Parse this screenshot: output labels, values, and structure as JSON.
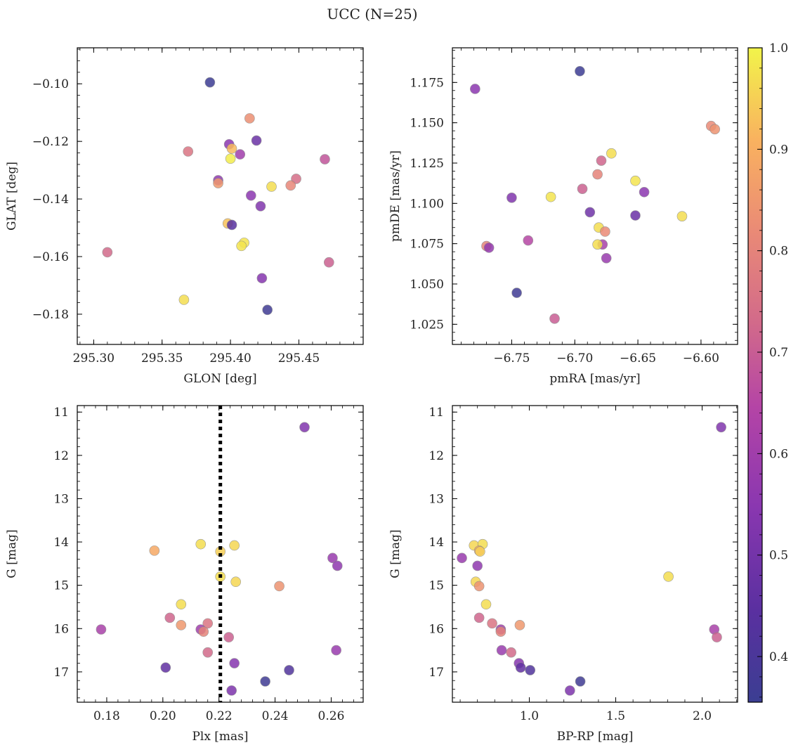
{
  "figure_title": "UCC (N=25)",
  "colorbar": {
    "range": [
      0.355,
      1.0
    ],
    "ticks": [
      "0.4",
      "0.5",
      "0.6",
      "0.7",
      "0.8",
      "0.9",
      "1.0"
    ],
    "tick_values": [
      0.4,
      0.5,
      0.6,
      0.7,
      0.8,
      0.9,
      1.0
    ],
    "colormap": "plasma"
  },
  "chart_data": [
    {
      "type": "scatter",
      "xlabel": "GLON [deg]",
      "ylabel": "GLAT [deg]",
      "xlim": [
        295.288,
        295.497
      ],
      "ylim": [
        -0.1905,
        -0.0875
      ],
      "xticks": [
        "295.30",
        "295.35",
        "295.40",
        "295.45"
      ],
      "xtick_values": [
        295.3,
        295.35,
        295.4,
        295.45
      ],
      "yticks": [
        "−0.10",
        "−0.12",
        "−0.14",
        "−0.16",
        "−0.18"
      ],
      "ytick_values": [
        -0.1,
        -0.12,
        -0.14,
        -0.16,
        -0.18
      ],
      "y_inverted": false,
      "points": [
        {
          "x": 295.385,
          "y": -0.0995,
          "c": 0.36
        },
        {
          "x": 295.414,
          "y": -0.112,
          "c": 0.83
        },
        {
          "x": 295.369,
          "y": -0.1235,
          "c": 0.76
        },
        {
          "x": 295.399,
          "y": -0.121,
          "c": 0.55
        },
        {
          "x": 295.401,
          "y": -0.1225,
          "c": 0.92
        },
        {
          "x": 295.419,
          "y": -0.1197,
          "c": 0.48
        },
        {
          "x": 295.407,
          "y": -0.1245,
          "c": 0.6
        },
        {
          "x": 295.4,
          "y": -0.126,
          "c": 0.99
        },
        {
          "x": 295.469,
          "y": -0.1262,
          "c": 0.68
        },
        {
          "x": 295.391,
          "y": -0.1335,
          "c": 0.56
        },
        {
          "x": 295.391,
          "y": -0.1345,
          "c": 0.85
        },
        {
          "x": 295.448,
          "y": -0.133,
          "c": 0.74
        },
        {
          "x": 295.43,
          "y": -0.1357,
          "c": 0.97
        },
        {
          "x": 295.444,
          "y": -0.1353,
          "c": 0.81
        },
        {
          "x": 295.415,
          "y": -0.1388,
          "c": 0.55
        },
        {
          "x": 295.422,
          "y": -0.1425,
          "c": 0.53
        },
        {
          "x": 295.398,
          "y": -0.1485,
          "c": 0.93
        },
        {
          "x": 295.401,
          "y": -0.149,
          "c": 0.44
        },
        {
          "x": 295.41,
          "y": -0.1552,
          "c": 0.98
        },
        {
          "x": 295.408,
          "y": -0.1563,
          "c": 0.98
        },
        {
          "x": 295.31,
          "y": -0.1585,
          "c": 0.73
        },
        {
          "x": 295.472,
          "y": -0.162,
          "c": 0.71
        },
        {
          "x": 295.423,
          "y": -0.1675,
          "c": 0.54
        },
        {
          "x": 295.366,
          "y": -0.175,
          "c": 0.97
        },
        {
          "x": 295.427,
          "y": -0.1785,
          "c": 0.37
        }
      ]
    },
    {
      "type": "scatter",
      "xlabel": "pmRA [mas/yr]",
      "ylabel": "pmDE [mas/yr]",
      "xlim": [
        -6.797,
        -6.571
      ],
      "ylim": [
        1.0125,
        1.1965
      ],
      "xticks": [
        "−6.75",
        "−6.70",
        "−6.65",
        "−6.60"
      ],
      "xtick_values": [
        -6.75,
        -6.7,
        -6.65,
        -6.6
      ],
      "yticks": [
        "1.025",
        "1.050",
        "1.075",
        "1.100",
        "1.125",
        "1.150",
        "1.175"
      ],
      "ytick_values": [
        1.025,
        1.05,
        1.075,
        1.1,
        1.125,
        1.15,
        1.175
      ],
      "y_inverted": false,
      "points": [
        {
          "x": -6.696,
          "y": 1.182,
          "c": 0.36
        },
        {
          "x": -6.779,
          "y": 1.171,
          "c": 0.55
        },
        {
          "x": -6.592,
          "y": 1.148,
          "c": 0.82
        },
        {
          "x": -6.589,
          "y": 1.146,
          "c": 0.84
        },
        {
          "x": -6.671,
          "y": 1.131,
          "c": 0.97
        },
        {
          "x": -6.679,
          "y": 1.1265,
          "c": 0.72
        },
        {
          "x": -6.682,
          "y": 1.118,
          "c": 0.8
        },
        {
          "x": -6.652,
          "y": 1.114,
          "c": 0.98
        },
        {
          "x": -6.694,
          "y": 1.109,
          "c": 0.71
        },
        {
          "x": -6.645,
          "y": 1.107,
          "c": 0.55
        },
        {
          "x": -6.75,
          "y": 1.1035,
          "c": 0.53
        },
        {
          "x": -6.719,
          "y": 1.104,
          "c": 0.98
        },
        {
          "x": -6.688,
          "y": 1.0945,
          "c": 0.49
        },
        {
          "x": -6.652,
          "y": 1.0925,
          "c": 0.48
        },
        {
          "x": -6.615,
          "y": 1.092,
          "c": 0.97
        },
        {
          "x": -6.681,
          "y": 1.085,
          "c": 0.97
        },
        {
          "x": -6.676,
          "y": 1.0825,
          "c": 0.82
        },
        {
          "x": -6.737,
          "y": 1.077,
          "c": 0.65
        },
        {
          "x": -6.678,
          "y": 1.0745,
          "c": 0.62
        },
        {
          "x": -6.682,
          "y": 1.0745,
          "c": 0.97
        },
        {
          "x": -6.77,
          "y": 1.0735,
          "c": 0.8
        },
        {
          "x": -6.768,
          "y": 1.0725,
          "c": 0.57
        },
        {
          "x": -6.675,
          "y": 1.066,
          "c": 0.58
        },
        {
          "x": -6.746,
          "y": 1.0445,
          "c": 0.37
        },
        {
          "x": -6.716,
          "y": 1.0285,
          "c": 0.7
        }
      ]
    },
    {
      "type": "scatter",
      "xlabel": "Plx [mas]",
      "ylabel": "G [mag]",
      "xlim": [
        0.1695,
        0.2714
      ],
      "ylim": [
        10.85,
        17.7
      ],
      "xticks": [
        "0.18",
        "0.20",
        "0.22",
        "0.24",
        "0.26"
      ],
      "xtick_values": [
        0.18,
        0.2,
        0.22,
        0.24,
        0.26
      ],
      "yticks": [
        "11",
        "12",
        "13",
        "14",
        "15",
        "16",
        "17"
      ],
      "ytick_values": [
        11,
        12,
        13,
        14,
        15,
        16,
        17
      ],
      "y_inverted": true,
      "vline": 0.2205,
      "points": [
        {
          "x": 0.2505,
          "y": 11.35,
          "c": 0.53
        },
        {
          "x": 0.2135,
          "y": 14.05,
          "c": 0.97
        },
        {
          "x": 0.2255,
          "y": 14.08,
          "c": 0.96
        },
        {
          "x": 0.197,
          "y": 14.2,
          "c": 0.89
        },
        {
          "x": 0.2205,
          "y": 14.22,
          "c": 0.95
        },
        {
          "x": 0.2605,
          "y": 14.37,
          "c": 0.58
        },
        {
          "x": 0.2622,
          "y": 14.55,
          "c": 0.56
        },
        {
          "x": 0.2205,
          "y": 14.8,
          "c": 0.97
        },
        {
          "x": 0.226,
          "y": 14.92,
          "c": 0.96
        },
        {
          "x": 0.2415,
          "y": 15.02,
          "c": 0.84
        },
        {
          "x": 0.2065,
          "y": 15.44,
          "c": 0.97
        },
        {
          "x": 0.2025,
          "y": 15.75,
          "c": 0.72
        },
        {
          "x": 0.2065,
          "y": 15.92,
          "c": 0.85
        },
        {
          "x": 0.216,
          "y": 15.88,
          "c": 0.76
        },
        {
          "x": 0.2135,
          "y": 16.02,
          "c": 0.6
        },
        {
          "x": 0.2145,
          "y": 16.07,
          "c": 0.8
        },
        {
          "x": 0.178,
          "y": 16.02,
          "c": 0.62
        },
        {
          "x": 0.2235,
          "y": 16.2,
          "c": 0.71
        },
        {
          "x": 0.2618,
          "y": 16.5,
          "c": 0.58
        },
        {
          "x": 0.216,
          "y": 16.55,
          "c": 0.73
        },
        {
          "x": 0.2255,
          "y": 16.8,
          "c": 0.54
        },
        {
          "x": 0.201,
          "y": 16.9,
          "c": 0.46
        },
        {
          "x": 0.245,
          "y": 16.96,
          "c": 0.42
        },
        {
          "x": 0.2365,
          "y": 17.22,
          "c": 0.37
        },
        {
          "x": 0.2245,
          "y": 17.43,
          "c": 0.52
        }
      ]
    },
    {
      "type": "scatter",
      "xlabel": "BP-RP [mag]",
      "ylabel": "G [mag]",
      "xlim": [
        0.555,
        2.205
      ],
      "ylim": [
        10.85,
        17.7
      ],
      "xticks": [
        "1.0",
        "1.5",
        "2.0"
      ],
      "xtick_values": [
        1.0,
        1.5,
        2.0
      ],
      "yticks": [
        "11",
        "12",
        "13",
        "14",
        "15",
        "16",
        "17"
      ],
      "ytick_values": [
        11,
        12,
        13,
        14,
        15,
        16,
        17
      ],
      "y_inverted": true,
      "points": [
        {
          "x": 2.11,
          "y": 11.35,
          "c": 0.53
        },
        {
          "x": 0.68,
          "y": 14.08,
          "c": 0.96
        },
        {
          "x": 0.73,
          "y": 14.05,
          "c": 0.97
        },
        {
          "x": 0.71,
          "y": 14.2,
          "c": 0.89
        },
        {
          "x": 0.715,
          "y": 14.22,
          "c": 0.95
        },
        {
          "x": 0.61,
          "y": 14.37,
          "c": 0.58
        },
        {
          "x": 0.7,
          "y": 14.55,
          "c": 0.56
        },
        {
          "x": 1.805,
          "y": 14.8,
          "c": 0.97
        },
        {
          "x": 0.69,
          "y": 14.92,
          "c": 0.96
        },
        {
          "x": 0.71,
          "y": 15.02,
          "c": 0.84
        },
        {
          "x": 0.75,
          "y": 15.44,
          "c": 0.97
        },
        {
          "x": 0.71,
          "y": 15.75,
          "c": 0.72
        },
        {
          "x": 0.785,
          "y": 15.88,
          "c": 0.76
        },
        {
          "x": 0.945,
          "y": 15.92,
          "c": 0.85
        },
        {
          "x": 0.835,
          "y": 16.02,
          "c": 0.6
        },
        {
          "x": 0.835,
          "y": 16.07,
          "c": 0.8
        },
        {
          "x": 2.07,
          "y": 16.02,
          "c": 0.62
        },
        {
          "x": 2.085,
          "y": 16.2,
          "c": 0.71
        },
        {
          "x": 0.84,
          "y": 16.5,
          "c": 0.58
        },
        {
          "x": 0.895,
          "y": 16.55,
          "c": 0.73
        },
        {
          "x": 0.94,
          "y": 16.8,
          "c": 0.54
        },
        {
          "x": 0.95,
          "y": 16.9,
          "c": 0.46
        },
        {
          "x": 1.005,
          "y": 16.96,
          "c": 0.42
        },
        {
          "x": 1.295,
          "y": 17.22,
          "c": 0.37
        },
        {
          "x": 1.235,
          "y": 17.43,
          "c": 0.52
        }
      ]
    }
  ]
}
